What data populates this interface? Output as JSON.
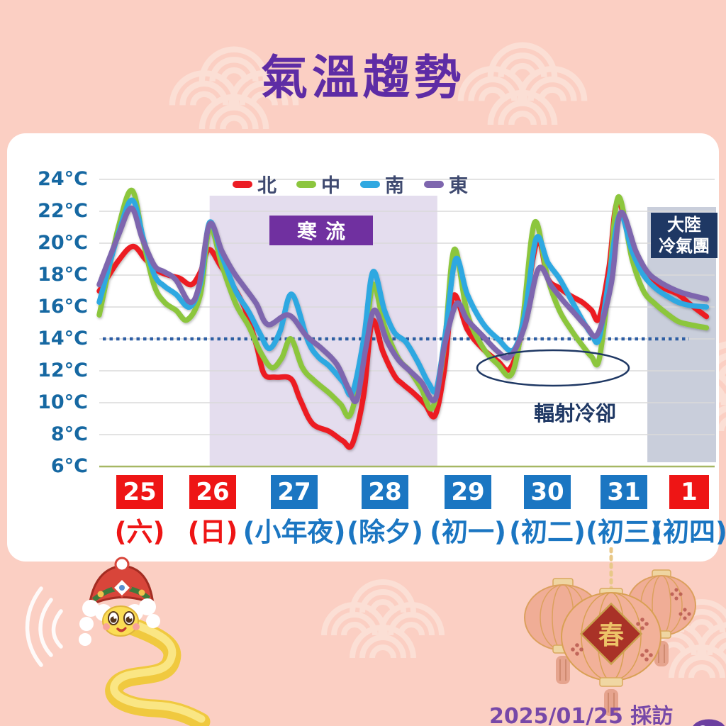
{
  "title": "氣溫趨勢",
  "credit": {
    "text": "2025/01/25 採訪製圖"
  },
  "decor": {
    "spring": "春"
  },
  "colors": {
    "background": "#fbcfc3",
    "wave_pattern": "#fbdfd5",
    "title_purple": "#5e2ca5",
    "axis_label_blue": "#1668a2",
    "legend_text": "#3f4a70",
    "north_red": "#ec1c24",
    "central_green": "#8cc63e",
    "south_blue": "#2fa8e1",
    "east_purple": "#7e66ae",
    "cold_wave_shade": "#e4ddee",
    "cold_wave_box": "#7030a0",
    "cold_airmass_shade": "#c9cedb",
    "cold_airmass_box": "#1f3864",
    "annotation_navy": "#1f3864",
    "reference_dotted": "#2e5ea4",
    "date_red": "#ee1515",
    "date_blue": "#1b76c2",
    "gridline": "#dadada",
    "baseline_olive": "#a6b763",
    "credit_purple": "#7748a8"
  },
  "legend": [
    {
      "label": "北",
      "color": "#ec1c24"
    },
    {
      "label": "中",
      "color": "#8cc63e"
    },
    {
      "label": "南",
      "color": "#2fa8e1"
    },
    {
      "label": "東",
      "color": "#7e66ae"
    }
  ],
  "chart_data": {
    "type": "line",
    "title": "氣溫趨勢",
    "ylabel": "°C",
    "ylim": [
      6,
      24
    ],
    "grid": true,
    "legend_position": "top",
    "y_axis": {
      "unit": "°C",
      "min": 6,
      "max": 24,
      "step": 2,
      "ticks": [
        "24°C",
        "22°C",
        "20°C",
        "18°C",
        "16°C",
        "14°C",
        "12°C",
        "10°C",
        "8°C",
        "6°C"
      ]
    },
    "x_axis": {
      "dates": [
        {
          "day": "25",
          "weekday": "(六)",
          "box": "red",
          "text": "red"
        },
        {
          "day": "26",
          "weekday": "(日)",
          "box": "red",
          "text": "red"
        },
        {
          "day": "27",
          "weekday": "(小年夜)",
          "box": "blue",
          "text": "blue"
        },
        {
          "day": "28",
          "weekday": "(除夕)",
          "box": "blue",
          "text": "blue"
        },
        {
          "day": "29",
          "weekday": "(初一)",
          "box": "blue",
          "text": "blue"
        },
        {
          "day": "30",
          "weekday": "(初二)",
          "box": "blue",
          "text": "blue"
        },
        {
          "day": "31",
          "weekday": "(初三)",
          "box": "blue",
          "text": "blue"
        },
        {
          "day": "1",
          "weekday": "(初四)",
          "box": "red",
          "text": "blue"
        }
      ]
    },
    "annotations": {
      "cold_wave": "寒流",
      "continental": [
        "大陸",
        "冷氣團"
      ],
      "radiative_cooling": "輻射冷卻",
      "reference_line_c": 14,
      "cold_wave_region_days": [
        1.44,
        4.41
      ],
      "continental_region_days": [
        7.15,
        8.0
      ]
    },
    "series": [
      {
        "name": "北",
        "color": "#ec1c24",
        "points": [
          [
            0,
            17.0
          ],
          [
            0.25,
            18.9
          ],
          [
            0.44,
            19.8
          ],
          [
            0.6,
            19.0
          ],
          [
            0.75,
            18.3
          ],
          [
            0.9,
            18.0
          ],
          [
            1.05,
            17.8
          ],
          [
            1.2,
            17.4
          ],
          [
            1.32,
            18.2
          ],
          [
            1.43,
            19.6
          ],
          [
            1.58,
            18.6
          ],
          [
            1.75,
            17.3
          ],
          [
            1.9,
            15.9
          ],
          [
            2.05,
            13.6
          ],
          [
            2.15,
            11.8
          ],
          [
            2.3,
            11.6
          ],
          [
            2.5,
            11.5
          ],
          [
            2.62,
            10.2
          ],
          [
            2.78,
            8.7
          ],
          [
            3.0,
            8.2
          ],
          [
            3.18,
            7.6
          ],
          [
            3.3,
            7.4
          ],
          [
            3.45,
            10.5
          ],
          [
            3.56,
            15.1
          ],
          [
            3.7,
            13.2
          ],
          [
            3.85,
            11.7
          ],
          [
            3.95,
            11.2
          ],
          [
            4.1,
            10.6
          ],
          [
            4.25,
            9.9
          ],
          [
            4.38,
            9.2
          ],
          [
            4.5,
            12.0
          ],
          [
            4.62,
            16.7
          ],
          [
            4.8,
            14.6
          ],
          [
            5.0,
            13.4
          ],
          [
            5.2,
            12.6
          ],
          [
            5.35,
            12.1
          ],
          [
            5.5,
            14.2
          ],
          [
            5.71,
            20.1
          ],
          [
            5.85,
            17.8
          ],
          [
            6.0,
            17.2
          ],
          [
            6.15,
            16.7
          ],
          [
            6.3,
            16.3
          ],
          [
            6.42,
            15.8
          ],
          [
            6.52,
            15.3
          ],
          [
            6.65,
            18.5
          ],
          [
            6.76,
            22.6
          ],
          [
            6.95,
            19.8
          ],
          [
            7.1,
            18.2
          ],
          [
            7.25,
            17.4
          ],
          [
            7.4,
            17.1
          ],
          [
            7.55,
            16.8
          ],
          [
            7.7,
            16.2
          ],
          [
            7.92,
            15.4
          ]
        ]
      },
      {
        "name": "中",
        "color": "#8cc63e",
        "points": [
          [
            0,
            15.5
          ],
          [
            0.25,
            21.0
          ],
          [
            0.43,
            23.3
          ],
          [
            0.58,
            20.0
          ],
          [
            0.72,
            17.3
          ],
          [
            0.85,
            16.3
          ],
          [
            1.0,
            15.8
          ],
          [
            1.15,
            15.2
          ],
          [
            1.32,
            16.8
          ],
          [
            1.44,
            21.0
          ],
          [
            1.6,
            18.6
          ],
          [
            1.78,
            16.2
          ],
          [
            1.95,
            14.8
          ],
          [
            2.1,
            13.2
          ],
          [
            2.25,
            12.2
          ],
          [
            2.38,
            12.8
          ],
          [
            2.5,
            14.0
          ],
          [
            2.65,
            12.2
          ],
          [
            2.8,
            11.4
          ],
          [
            3.0,
            10.6
          ],
          [
            3.15,
            9.9
          ],
          [
            3.28,
            9.3
          ],
          [
            3.45,
            13.0
          ],
          [
            3.57,
            17.4
          ],
          [
            3.72,
            14.8
          ],
          [
            3.9,
            12.8
          ],
          [
            4.05,
            12.0
          ],
          [
            4.2,
            10.9
          ],
          [
            4.35,
            9.7
          ],
          [
            4.5,
            13.5
          ],
          [
            4.63,
            19.6
          ],
          [
            4.8,
            15.6
          ],
          [
            5.0,
            13.5
          ],
          [
            5.2,
            12.4
          ],
          [
            5.38,
            11.8
          ],
          [
            5.52,
            15.0
          ],
          [
            5.68,
            21.3
          ],
          [
            5.85,
            17.8
          ],
          [
            6.0,
            15.8
          ],
          [
            6.15,
            14.6
          ],
          [
            6.3,
            13.6
          ],
          [
            6.42,
            12.9
          ],
          [
            6.52,
            12.7
          ],
          [
            6.65,
            17.5
          ],
          [
            6.77,
            22.9
          ],
          [
            6.95,
            19.0
          ],
          [
            7.1,
            17.0
          ],
          [
            7.25,
            16.2
          ],
          [
            7.4,
            15.6
          ],
          [
            7.55,
            15.1
          ],
          [
            7.7,
            14.9
          ],
          [
            7.92,
            14.7
          ]
        ]
      },
      {
        "name": "南",
        "color": "#2fa8e1",
        "points": [
          [
            0,
            16.3
          ],
          [
            0.25,
            20.6
          ],
          [
            0.43,
            22.7
          ],
          [
            0.58,
            20.2
          ],
          [
            0.72,
            18.0
          ],
          [
            0.85,
            17.3
          ],
          [
            1.0,
            16.8
          ],
          [
            1.18,
            16.0
          ],
          [
            1.32,
            17.5
          ],
          [
            1.44,
            21.3
          ],
          [
            1.6,
            19.2
          ],
          [
            1.78,
            17.0
          ],
          [
            1.95,
            15.7
          ],
          [
            2.1,
            14.3
          ],
          [
            2.22,
            13.4
          ],
          [
            2.36,
            14.5
          ],
          [
            2.51,
            16.8
          ],
          [
            2.72,
            13.9
          ],
          [
            2.85,
            12.9
          ],
          [
            3.0,
            12.3
          ],
          [
            3.18,
            11.3
          ],
          [
            3.3,
            10.6
          ],
          [
            3.45,
            14.0
          ],
          [
            3.57,
            18.2
          ],
          [
            3.72,
            15.8
          ],
          [
            3.85,
            14.4
          ],
          [
            4.0,
            13.8
          ],
          [
            4.15,
            12.6
          ],
          [
            4.3,
            11.2
          ],
          [
            4.4,
            10.9
          ],
          [
            4.52,
            14.5
          ],
          [
            4.65,
            19.0
          ],
          [
            4.8,
            16.8
          ],
          [
            5.0,
            15.0
          ],
          [
            5.2,
            14.0
          ],
          [
            5.4,
            13.3
          ],
          [
            5.55,
            15.5
          ],
          [
            5.7,
            20.3
          ],
          [
            5.85,
            18.8
          ],
          [
            6.0,
            17.8
          ],
          [
            6.15,
            16.5
          ],
          [
            6.3,
            15.2
          ],
          [
            6.42,
            14.3
          ],
          [
            6.52,
            14.0
          ],
          [
            6.65,
            17.8
          ],
          [
            6.79,
            21.8
          ],
          [
            6.95,
            19.5
          ],
          [
            7.1,
            18.0
          ],
          [
            7.25,
            17.2
          ],
          [
            7.4,
            16.7
          ],
          [
            7.55,
            16.3
          ],
          [
            7.7,
            16.1
          ],
          [
            7.92,
            16.0
          ]
        ]
      },
      {
        "name": "東",
        "color": "#7e66ae",
        "points": [
          [
            0,
            17.4
          ],
          [
            0.25,
            20.5
          ],
          [
            0.42,
            22.2
          ],
          [
            0.56,
            20.3
          ],
          [
            0.72,
            18.6
          ],
          [
            0.85,
            18.2
          ],
          [
            1.0,
            17.7
          ],
          [
            1.18,
            16.3
          ],
          [
            1.3,
            17.3
          ],
          [
            1.44,
            21.2
          ],
          [
            1.6,
            19.5
          ],
          [
            1.75,
            18.2
          ],
          [
            1.9,
            17.2
          ],
          [
            2.05,
            16.2
          ],
          [
            2.2,
            14.9
          ],
          [
            2.47,
            15.5
          ],
          [
            2.7,
            14.2
          ],
          [
            2.9,
            13.4
          ],
          [
            3.1,
            12.4
          ],
          [
            3.25,
            10.9
          ],
          [
            3.36,
            10.2
          ],
          [
            3.48,
            13.5
          ],
          [
            3.59,
            15.8
          ],
          [
            3.75,
            13.9
          ],
          [
            3.9,
            12.7
          ],
          [
            4.05,
            12.0
          ],
          [
            4.2,
            11.3
          ],
          [
            4.38,
            10.2
          ],
          [
            4.5,
            13.5
          ],
          [
            4.66,
            16.2
          ],
          [
            4.8,
            15.2
          ],
          [
            5.0,
            14.2
          ],
          [
            5.2,
            13.2
          ],
          [
            5.36,
            12.9
          ],
          [
            5.55,
            14.8
          ],
          [
            5.73,
            18.4
          ],
          [
            5.9,
            17.3
          ],
          [
            6.05,
            16.4
          ],
          [
            6.2,
            15.6
          ],
          [
            6.35,
            14.8
          ],
          [
            6.5,
            14.3
          ],
          [
            6.68,
            17.5
          ],
          [
            6.8,
            21.9
          ],
          [
            7.0,
            19.5
          ],
          [
            7.15,
            18.2
          ],
          [
            7.3,
            17.6
          ],
          [
            7.45,
            17.2
          ],
          [
            7.6,
            16.9
          ],
          [
            7.75,
            16.7
          ],
          [
            7.92,
            16.5
          ]
        ]
      }
    ]
  }
}
